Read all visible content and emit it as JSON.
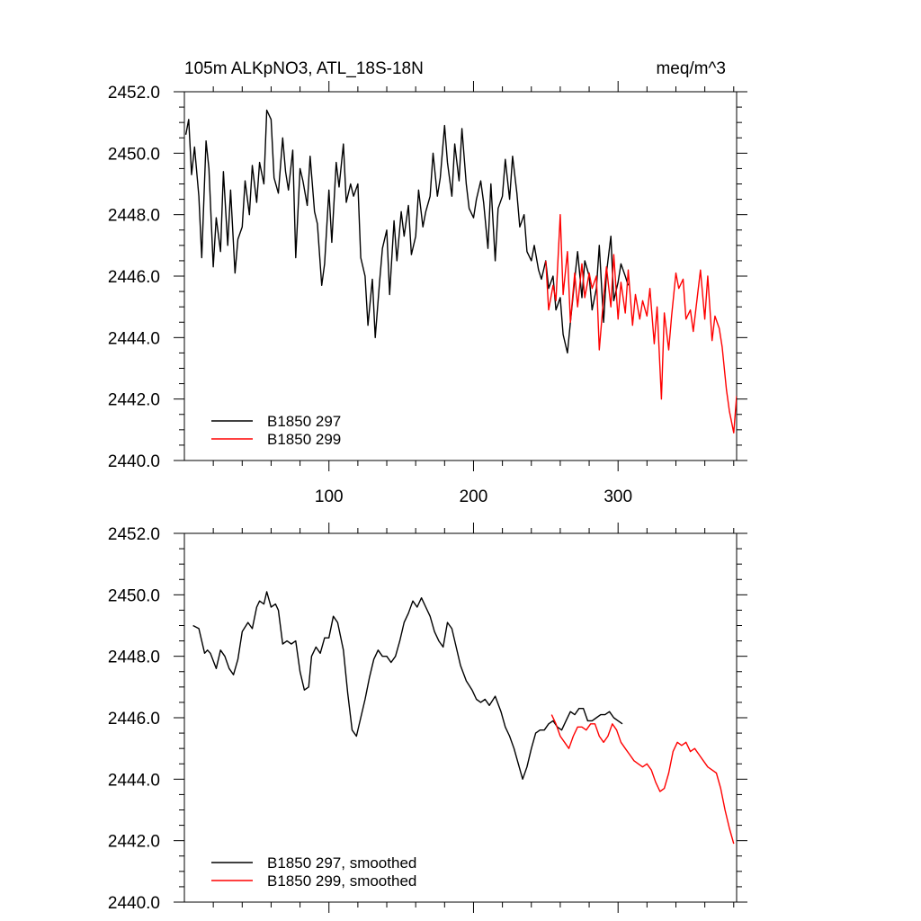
{
  "chart_data": [
    {
      "type": "line",
      "title": "105m ALKpNO3, ATL_18S-18N",
      "units": "meq/m^3",
      "xlim": [
        0,
        382
      ],
      "ylim": [
        2440,
        2452
      ],
      "xticks": [
        100,
        200,
        300
      ],
      "xtick_labels": [
        "100",
        "200",
        "300"
      ],
      "yticks": [
        2440,
        2442,
        2444,
        2446,
        2448,
        2450,
        2452
      ],
      "ytick_labels": [
        "2440.0",
        "2442.0",
        "2444.0",
        "2446.0",
        "2448.0",
        "2450.0",
        "2452.0"
      ],
      "grid": false,
      "legend_position": "bottom-left",
      "series": [
        {
          "name": "B1850 297",
          "color": "#000000",
          "x": [
            1,
            3,
            5,
            7,
            10,
            12,
            15,
            17,
            20,
            22,
            25,
            27,
            30,
            32,
            35,
            37,
            40,
            42,
            45,
            47,
            50,
            52,
            55,
            57,
            60,
            62,
            65,
            68,
            70,
            72,
            75,
            77,
            80,
            82,
            85,
            87,
            90,
            92,
            95,
            97,
            100,
            102,
            105,
            107,
            110,
            112,
            115,
            117,
            120,
            122,
            125,
            127,
            130,
            132,
            135,
            137,
            140,
            142,
            145,
            147,
            150,
            152,
            155,
            157,
            160,
            162,
            165,
            167,
            170,
            172,
            175,
            177,
            180,
            182,
            185,
            187,
            190,
            192,
            195,
            197,
            200,
            202,
            205,
            207,
            210,
            212,
            215,
            217,
            220,
            222,
            225,
            227,
            230,
            232,
            235,
            237,
            240,
            242,
            245,
            247,
            250,
            252,
            255,
            257,
            260,
            262,
            265,
            267,
            270,
            272,
            275,
            277,
            280,
            282,
            285,
            287,
            290,
            292,
            295,
            297,
            300,
            302,
            305,
            307
          ],
          "y": [
            2450.6,
            2451.1,
            2449.3,
            2450.2,
            2448.6,
            2446.6,
            2450.4,
            2449.5,
            2446.3,
            2447.9,
            2446.8,
            2449.4,
            2447.0,
            2448.8,
            2446.1,
            2447.2,
            2447.6,
            2449.1,
            2448.0,
            2449.6,
            2448.4,
            2449.7,
            2449.0,
            2451.4,
            2451.1,
            2449.2,
            2448.7,
            2450.5,
            2449.4,
            2448.8,
            2450.1,
            2446.6,
            2449.5,
            2449.1,
            2448.3,
            2449.9,
            2448.1,
            2447.7,
            2445.7,
            2446.4,
            2448.8,
            2447.1,
            2449.7,
            2448.9,
            2450.3,
            2448.4,
            2449.0,
            2448.6,
            2449.0,
            2446.6,
            2446.0,
            2444.4,
            2445.9,
            2444.0,
            2445.8,
            2446.9,
            2447.5,
            2445.4,
            2447.8,
            2446.5,
            2448.1,
            2447.3,
            2448.3,
            2446.7,
            2447.3,
            2448.8,
            2447.6,
            2448.1,
            2448.6,
            2450.0,
            2448.6,
            2449.2,
            2450.9,
            2449.7,
            2448.6,
            2450.3,
            2449.1,
            2450.8,
            2449.0,
            2448.2,
            2447.9,
            2448.5,
            2449.1,
            2448.4,
            2446.9,
            2449.0,
            2446.5,
            2448.2,
            2448.6,
            2449.8,
            2448.5,
            2449.9,
            2448.7,
            2447.6,
            2448.0,
            2446.8,
            2446.5,
            2447.0,
            2446.2,
            2445.9,
            2446.5,
            2445.6,
            2446.0,
            2444.9,
            2445.3,
            2444.1,
            2443.5,
            2444.5,
            2445.9,
            2446.8,
            2445.3,
            2446.5,
            2446.0,
            2444.9,
            2445.6,
            2447.0,
            2444.5,
            2446.1,
            2447.3,
            2445.2,
            2445.8,
            2446.4,
            2446.0,
            2445.7
          ]
        },
        {
          "name": "B1850 299",
          "color": "#ff0000",
          "x": [
            250,
            252,
            255,
            257,
            260,
            262,
            265,
            267,
            270,
            272,
            275,
            277,
            280,
            282,
            285,
            287,
            290,
            292,
            295,
            297,
            300,
            302,
            305,
            307,
            310,
            312,
            315,
            317,
            320,
            322,
            325,
            327,
            330,
            332,
            335,
            337,
            340,
            342,
            345,
            347,
            350,
            352,
            355,
            357,
            360,
            362,
            365,
            367,
            370,
            372,
            375,
            377,
            380,
            382
          ],
          "y": [
            2446.5,
            2444.9,
            2445.7,
            2445.2,
            2448.0,
            2445.4,
            2446.8,
            2444.5,
            2446.1,
            2445.0,
            2446.4,
            2445.3,
            2446.1,
            2445.6,
            2446.0,
            2443.6,
            2445.3,
            2446.3,
            2445.0,
            2446.7,
            2444.6,
            2445.8,
            2444.8,
            2446.2,
            2444.4,
            2445.4,
            2444.6,
            2445.2,
            2444.7,
            2445.6,
            2443.8,
            2445.0,
            2442.0,
            2444.8,
            2443.6,
            2444.7,
            2446.1,
            2445.6,
            2445.9,
            2444.6,
            2444.9,
            2444.2,
            2445.4,
            2446.2,
            2444.6,
            2446.0,
            2443.9,
            2444.7,
            2444.3,
            2443.7,
            2442.3,
            2441.6,
            2440.9,
            2442.1
          ]
        }
      ]
    },
    {
      "type": "line",
      "title": "",
      "xlim": [
        0,
        382
      ],
      "ylim": [
        2440,
        2452
      ],
      "xticks": [
        100,
        200,
        300
      ],
      "yticks": [
        2440,
        2442,
        2444,
        2446,
        2448,
        2450,
        2452
      ],
      "ytick_labels": [
        "2440.0",
        "2442.0",
        "2444.0",
        "2446.0",
        "2448.0",
        "2450.0",
        "2452.0"
      ],
      "grid": false,
      "legend_position": "bottom-left",
      "series": [
        {
          "name": "B1850 297, smoothed",
          "color": "#000000",
          "x": [
            6,
            10,
            14,
            16,
            18,
            22,
            25,
            28,
            31,
            34,
            37,
            40,
            44,
            47,
            50,
            52,
            55,
            57,
            60,
            63,
            65,
            68,
            71,
            74,
            77,
            80,
            83,
            86,
            88,
            91,
            94,
            97,
            100,
            103,
            106,
            110,
            113,
            116,
            119,
            122,
            125,
            128,
            131,
            134,
            137,
            140,
            143,
            146,
            149,
            152,
            155,
            158,
            161,
            164,
            167,
            170,
            173,
            176,
            179,
            182,
            185,
            188,
            191,
            195,
            199,
            202,
            205,
            208,
            211,
            215,
            219,
            222,
            225,
            228,
            231,
            234,
            237,
            240,
            243,
            246,
            249,
            252,
            255,
            258,
            261,
            264,
            267,
            270,
            273,
            276,
            279,
            282,
            285,
            288,
            291,
            294,
            297,
            300,
            303
          ],
          "y": [
            2449.0,
            2448.9,
            2448.1,
            2448.2,
            2448.1,
            2447.6,
            2448.2,
            2448.0,
            2447.6,
            2447.4,
            2447.9,
            2448.8,
            2449.1,
            2448.9,
            2449.6,
            2449.8,
            2449.7,
            2450.1,
            2449.6,
            2449.7,
            2449.5,
            2448.4,
            2448.5,
            2448.4,
            2448.5,
            2447.5,
            2446.9,
            2447.0,
            2448.0,
            2448.3,
            2448.1,
            2448.6,
            2448.6,
            2449.3,
            2449.1,
            2448.2,
            2446.8,
            2445.6,
            2445.4,
            2446.0,
            2446.6,
            2447.3,
            2447.9,
            2448.2,
            2448.0,
            2448.0,
            2447.8,
            2448.0,
            2448.5,
            2449.1,
            2449.4,
            2449.8,
            2449.6,
            2449.9,
            2449.6,
            2449.3,
            2448.8,
            2448.5,
            2448.3,
            2449.1,
            2448.9,
            2448.3,
            2447.7,
            2447.2,
            2446.9,
            2446.6,
            2446.5,
            2446.6,
            2446.4,
            2446.7,
            2446.2,
            2445.7,
            2445.4,
            2445.0,
            2444.5,
            2444.0,
            2444.4,
            2445.0,
            2445.5,
            2445.6,
            2445.6,
            2445.8,
            2445.9,
            2445.7,
            2445.6,
            2445.9,
            2446.2,
            2446.1,
            2446.3,
            2446.3,
            2445.9,
            2445.9,
            2446.0,
            2446.1,
            2446.1,
            2446.2,
            2446.0,
            2445.9,
            2445.8
          ]
        },
        {
          "name": "B1850 299, smoothed",
          "color": "#ff0000",
          "x": [
            254,
            257,
            260,
            263,
            266,
            269,
            272,
            275,
            278,
            281,
            284,
            287,
            290,
            293,
            296,
            299,
            302,
            305,
            308,
            311,
            314,
            317,
            320,
            323,
            326,
            329,
            332,
            335,
            338,
            341,
            344,
            347,
            350,
            353,
            356,
            359,
            362,
            365,
            368,
            371,
            374,
            377,
            380
          ],
          "y": [
            2446.1,
            2445.8,
            2445.4,
            2445.2,
            2445.0,
            2445.4,
            2445.7,
            2445.7,
            2445.6,
            2445.8,
            2445.8,
            2445.4,
            2445.2,
            2445.4,
            2445.8,
            2445.6,
            2445.2,
            2445.0,
            2444.8,
            2444.6,
            2444.5,
            2444.4,
            2444.5,
            2444.3,
            2443.9,
            2443.6,
            2443.7,
            2444.2,
            2444.9,
            2445.2,
            2445.1,
            2445.2,
            2444.9,
            2445.0,
            2444.8,
            2444.6,
            2444.4,
            2444.3,
            2444.2,
            2443.7,
            2443.0,
            2442.4,
            2441.9
          ]
        }
      ]
    }
  ]
}
